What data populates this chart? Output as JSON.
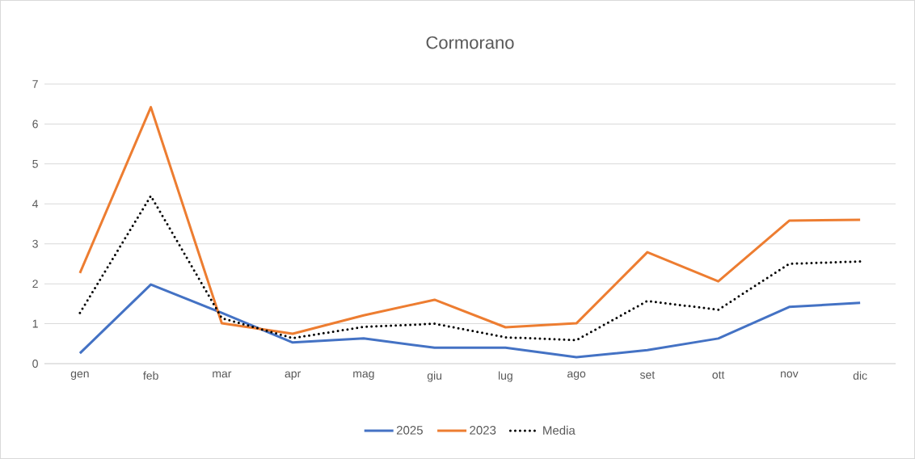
{
  "chart_data": {
    "type": "line",
    "title": "Cormorano",
    "categories": [
      "gen",
      "feb",
      "mar",
      "apr",
      "mag",
      "giu",
      "lug",
      "ago",
      "set",
      "ott",
      "nov",
      "dic"
    ],
    "series": [
      {
        "name": "2025",
        "color": "#4472c4",
        "line_style": "solid",
        "values": [
          0.26,
          1.98,
          1.27,
          0.53,
          0.63,
          0.4,
          0.4,
          0.16,
          0.34,
          0.63,
          1.42,
          1.52
        ]
      },
      {
        "name": "2023",
        "color": "#ed7d31",
        "line_style": "solid",
        "values": [
          2.27,
          6.42,
          1.01,
          0.75,
          1.21,
          1.6,
          0.91,
          1.01,
          2.79,
          2.06,
          3.58,
          3.6
        ]
      },
      {
        "name": "Media",
        "color": "#000000",
        "line_style": "dotted",
        "values": [
          1.27,
          4.2,
          1.14,
          0.64,
          0.92,
          1.0,
          0.66,
          0.59,
          1.57,
          1.35,
          2.5,
          2.56
        ]
      }
    ],
    "ylim": [
      0,
      7
    ],
    "yticks": [
      0,
      1,
      2,
      3,
      4,
      5,
      6,
      7
    ],
    "grid": "y",
    "legend": "bottom",
    "marker": "none"
  }
}
